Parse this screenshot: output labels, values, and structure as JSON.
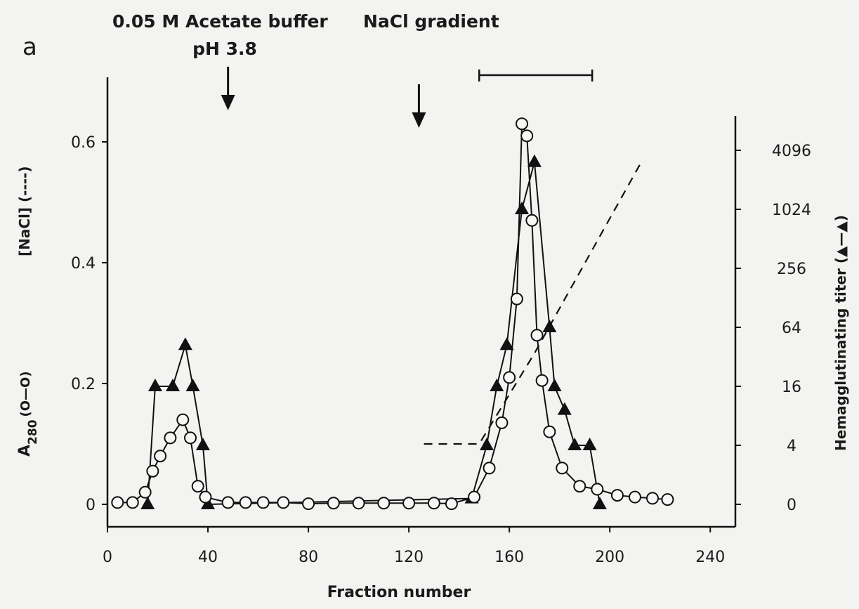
{
  "chart_data": {
    "type": "line",
    "panel_label": "a",
    "annotations": {
      "buffer_line1": "0.05 M Acetate buffer",
      "buffer_line2": "pH 3.8",
      "gradient": "NaCl gradient",
      "buffer_arrow_x": 48,
      "gradient_arrow_x": 124,
      "pooled_range": [
        148,
        193
      ]
    },
    "xlabel": "Fraction number",
    "xlim": [
      0,
      250
    ],
    "xticks": [
      0,
      40,
      80,
      120,
      160,
      200,
      240
    ],
    "left_axis": {
      "ylim": [
        -0.03,
        0.7
      ],
      "ticks": [
        0,
        0.2,
        0.4,
        0.6
      ],
      "tick_labels": [
        "0",
        "0.2",
        "0.4",
        "0.6"
      ],
      "label_a": "A",
      "label_a_sub": "280",
      "label_a_sym": "(O—O)",
      "label_nacl": "[NaCl] (----)"
    },
    "right_axis": {
      "scale": "log4",
      "ticks": [
        0,
        4,
        16,
        64,
        256,
        1024,
        4096
      ],
      "tick_labels": [
        "0",
        "4",
        "16",
        "64",
        "256",
        "1024",
        "4096"
      ],
      "label": "Hemagglutinating titer (▲—▲)"
    },
    "series": [
      {
        "name": "A280",
        "axis": "left",
        "marker": "circle",
        "x": [
          4,
          10,
          15,
          18,
          21,
          25,
          30,
          33,
          36,
          39,
          48,
          55,
          62,
          70,
          80,
          90,
          100,
          110,
          120,
          130,
          137,
          146,
          152,
          157,
          160,
          163,
          165,
          167,
          169,
          171,
          173,
          176,
          181,
          188,
          195,
          203,
          210,
          217,
          223
        ],
        "y": [
          0.003,
          0.003,
          0.02,
          0.055,
          0.08,
          0.11,
          0.14,
          0.11,
          0.03,
          0.012,
          0.003,
          0.003,
          0.003,
          0.003,
          0.001,
          0.002,
          0.002,
          0.002,
          0.002,
          0.002,
          0.001,
          0.012,
          0.06,
          0.135,
          0.21,
          0.34,
          0.63,
          0.61,
          0.47,
          0.28,
          0.205,
          0.12,
          0.06,
          0.03,
          0.025,
          0.015,
          0.012,
          0.01,
          0.008
        ]
      },
      {
        "name": "Hemagglutinating titer",
        "axis": "right",
        "marker": "triangle",
        "x": [
          16,
          19,
          26,
          31,
          34,
          38,
          40,
          145,
          151,
          155,
          159,
          165,
          170,
          176,
          178,
          182,
          186,
          192,
          196
        ],
        "y": [
          0,
          2,
          2,
          2.7,
          2,
          1,
          0,
          0.1,
          1,
          2,
          2.7,
          5,
          5.8,
          3,
          2,
          1.6,
          1,
          1,
          0
        ]
      },
      {
        "name": "[NaCl]",
        "axis": "left",
        "style": "dashed",
        "x": [
          126,
          142,
          148,
          170,
          213
        ],
        "y": [
          0.1,
          0.1,
          0.1,
          0.25,
          0.57
        ]
      }
    ]
  }
}
